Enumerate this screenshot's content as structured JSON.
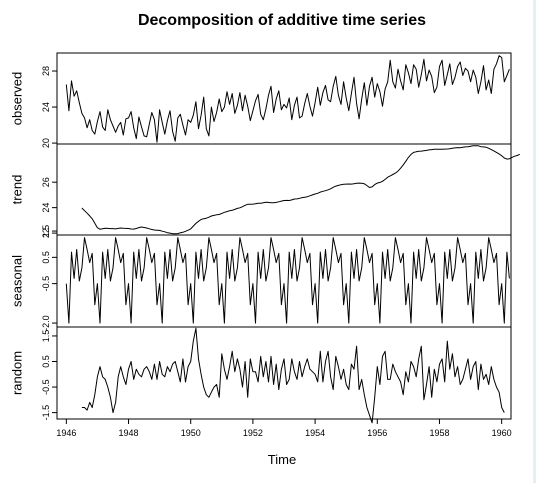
{
  "chart_data": {
    "type": "line",
    "title": "Decomposition of additive time series",
    "xlabel": "Time",
    "xlim": [
      1945.7,
      1960.3
    ],
    "x_ticks": [
      1946,
      1948,
      1950,
      1952,
      1954,
      1956,
      1958,
      1960
    ],
    "x_tick_labels": [
      "1946",
      "1948",
      "1950",
      "1952",
      "1954",
      "1956",
      "1958",
      "1960"
    ],
    "start": 1946.0,
    "frequency": 12,
    "panels": [
      {
        "name": "observed",
        "ylabel": "observed",
        "ylim": [
          19.9,
          30.0
        ],
        "y_ticks": [
          20,
          24,
          28
        ],
        "y_tick_labels": [
          "20",
          "24",
          "28"
        ],
        "values": [
          26.5,
          23.6,
          26.9,
          25.2,
          25.8,
          24.5,
          23.3,
          22.8,
          21.7,
          22.6,
          21.4,
          21.0,
          22.4,
          23.5,
          21.8,
          21.4,
          23.7,
          22.6,
          21.9,
          21.2,
          21.9,
          22.3,
          20.9,
          22.7,
          22.8,
          23.5,
          21.7,
          20.5,
          22.9,
          21.8,
          20.8,
          20.7,
          22.1,
          23.4,
          22.6,
          20.1,
          23.7,
          22.3,
          21.0,
          22.5,
          23.6,
          21.3,
          20.2,
          22.8,
          23.2,
          22.0,
          20.9,
          22.6,
          22.3,
          23.1,
          24.6,
          21.6,
          23.1,
          25.1,
          21.6,
          20.8,
          24.0,
          22.4,
          23.4,
          24.9,
          23.5,
          24.0,
          25.7,
          24.3,
          25.5,
          23.3,
          24.2,
          25.6,
          23.6,
          25.3,
          24.1,
          22.5,
          23.6,
          24.7,
          25.4,
          23.2,
          22.6,
          23.8,
          25.3,
          26.3,
          23.4,
          24.9,
          25.8,
          23.7,
          24.3,
          23.9,
          25.0,
          22.6,
          24.2,
          25.1,
          22.8,
          23.0,
          24.4,
          25.5,
          24.1,
          23.0,
          24.5,
          26.2,
          24.2,
          25.6,
          26.4,
          24.8,
          24.6,
          26.3,
          27.4,
          25.3,
          24.3,
          26.8,
          25.0,
          23.6,
          25.5,
          27.3,
          24.4,
          22.7,
          24.9,
          26.7,
          24.2,
          26.3,
          27.3,
          25.1,
          26.6,
          25.7,
          24.1,
          26.0,
          26.8,
          29.2,
          26.8,
          26.1,
          28.2,
          26.9,
          25.9,
          28.7,
          27.8,
          26.6,
          28.7,
          28.2,
          26.2,
          27.6,
          29.3,
          26.9,
          28.1,
          27.4,
          25.6,
          26.2,
          28.5,
          29.2,
          26.4,
          27.6,
          28.8,
          26.5,
          27.3,
          28.5,
          29.0,
          27.5,
          28.3,
          28.0,
          26.8,
          28.1,
          27.3,
          25.5,
          26.8,
          28.6,
          25.9,
          27.0,
          25.5,
          28.2,
          28.8,
          29.7,
          29.5,
          26.8,
          27.5,
          28.2
        ]
      },
      {
        "name": "trend",
        "ylabel": "trend",
        "ylim": [
          21.85,
          29.0
        ],
        "y_ticks": [
          22,
          24,
          26
        ],
        "y_tick_labels": [
          "22",
          "24",
          "26"
        ],
        "values": [
          null,
          null,
          null,
          null,
          null,
          null,
          23.97,
          23.76,
          23.56,
          23.35,
          23.12,
          22.78,
          22.42,
          22.3,
          22.34,
          22.38,
          22.37,
          22.35,
          22.35,
          22.33,
          22.37,
          22.4,
          22.38,
          22.37,
          22.36,
          22.32,
          22.31,
          22.36,
          22.43,
          22.48,
          22.44,
          22.4,
          22.34,
          22.28,
          22.24,
          22.23,
          22.21,
          22.15,
          22.1,
          22.03,
          22.0,
          21.95,
          21.95,
          21.96,
          22.02,
          22.06,
          22.14,
          22.23,
          22.33,
          22.55,
          22.76,
          22.93,
          23.07,
          23.13,
          23.17,
          23.25,
          23.34,
          23.39,
          23.44,
          23.46,
          23.55,
          23.63,
          23.69,
          23.76,
          23.79,
          23.86,
          23.94,
          23.99,
          24.07,
          24.18,
          24.26,
          24.26,
          24.28,
          24.3,
          24.34,
          24.35,
          24.38,
          24.42,
          24.41,
          24.38,
          24.39,
          24.41,
          24.46,
          24.51,
          24.56,
          24.57,
          24.56,
          24.61,
          24.68,
          24.69,
          24.73,
          24.79,
          24.82,
          24.86,
          24.93,
          25.0,
          25.07,
          25.13,
          25.22,
          25.28,
          25.33,
          25.4,
          25.48,
          25.6,
          25.69,
          25.75,
          25.8,
          25.83,
          25.85,
          25.86,
          25.85,
          25.87,
          25.91,
          25.93,
          25.91,
          25.87,
          25.74,
          25.58,
          25.63,
          25.81,
          25.93,
          25.98,
          26.07,
          26.22,
          26.39,
          26.49,
          26.6,
          26.71,
          26.87,
          27.1,
          27.36,
          27.64,
          27.95,
          28.18,
          28.34,
          28.39,
          28.43,
          28.44,
          28.47,
          28.5,
          28.54,
          28.56,
          28.58,
          28.59,
          28.59,
          28.59,
          28.6,
          28.61,
          28.63,
          28.66,
          28.69,
          28.72,
          28.71,
          28.74,
          28.77,
          28.79,
          28.83,
          28.86,
          28.86,
          28.86,
          28.79,
          28.77,
          28.75,
          28.66,
          28.56,
          28.46,
          28.34,
          28.22,
          28.07,
          27.9,
          27.81,
          27.84,
          27.95,
          28.04,
          28.1,
          28.19,
          null,
          null,
          null,
          null,
          null,
          null
        ]
      },
      {
        "name": "seasonal",
        "ylabel": "seasonal",
        "ylim": [
          -2.15,
          1.35
        ],
        "y_ticks": [
          -2.0,
          -0.5,
          0.5,
          1.5
        ],
        "y_tick_labels": [
          "-2.0",
          "-0.5",
          "0.5",
          "1.5"
        ],
        "period": 12,
        "values": [
          -0.5,
          -2.0,
          0.7,
          -0.3,
          0.8,
          -0.4,
          0.1,
          1.25,
          0.8,
          0.3,
          0.65,
          -1.3
        ]
      },
      {
        "name": "random",
        "ylabel": "random",
        "ylim": [
          -1.75,
          1.85
        ],
        "y_ticks": [
          -1.5,
          -0.5,
          0.5,
          1.5
        ],
        "y_tick_labels": [
          "-1.5",
          "-0.5",
          "0.5",
          "1.5"
        ],
        "values": [
          null,
          null,
          null,
          null,
          null,
          null,
          -1.3,
          -1.3,
          -1.4,
          -1.1,
          -1.3,
          -0.8,
          -0.1,
          0.3,
          -0.1,
          -0.2,
          -0.5,
          -0.9,
          -1.5,
          -1.1,
          -0.1,
          0.3,
          -0.1,
          -0.4,
          0.2,
          0.5,
          -0.2,
          0.2,
          0.0,
          -0.1,
          0.2,
          0.3,
          0.1,
          -0.2,
          0.4,
          -0.2,
          0.5,
          0.0,
          -0.1,
          0.3,
          0.1,
          0.4,
          0.5,
          0.1,
          -0.3,
          0.6,
          -0.3,
          0.3,
          0.5,
          1.3,
          1.8,
          0.6,
          0.0,
          -0.5,
          -0.8,
          -0.9,
          -0.7,
          -0.5,
          -0.4,
          -0.9,
          0.8,
          0.2,
          -0.2,
          0.3,
          0.9,
          0.1,
          0.6,
          0.2,
          -0.5,
          0.5,
          -0.9,
          0.6,
          0.1,
          0.1,
          -0.3,
          0.7,
          -0.1,
          0.5,
          -0.3,
          0.7,
          -0.4,
          0.4,
          -0.6,
          0.2,
          0.6,
          -0.4,
          -0.2,
          0.6,
          0.1,
          -0.2,
          0.5,
          -0.1,
          0.3,
          0.6,
          0.2,
          0.1,
          0.0,
          -0.3,
          0.9,
          -0.3,
          0.5,
          0.9,
          -0.1,
          -0.6,
          0.7,
          0.3,
          -0.2,
          0.2,
          -0.4,
          -0.6,
          0.4,
          0.2,
          1.1,
          -0.6,
          -0.2,
          -0.8,
          -1.3,
          -1.6,
          -1.9,
          -0.9,
          0.3,
          -0.4,
          0.7,
          0.9,
          -0.2,
          -0.2,
          0.4,
          0.1,
          -0.1,
          -0.3,
          -0.8,
          0.1,
          -0.3,
          0.5,
          0.3,
          -0.1,
          0.6,
          1.1,
          -1.0,
          -0.4,
          0.3,
          -0.9,
          0.2,
          -0.3,
          0.4,
          0.6,
          -0.3,
          1.3,
          0.2,
          0.8,
          -0.1,
          0.3,
          -0.4,
          -0.2,
          0.2,
          0.6,
          -0.2,
          0.3,
          0.5,
          -0.6,
          0.4,
          -0.2,
          0.0,
          -0.4,
          0.3,
          -0.2,
          -0.5,
          -0.7,
          -1.3,
          -1.5,
          null,
          null,
          null,
          null,
          null,
          null
        ]
      }
    ]
  }
}
